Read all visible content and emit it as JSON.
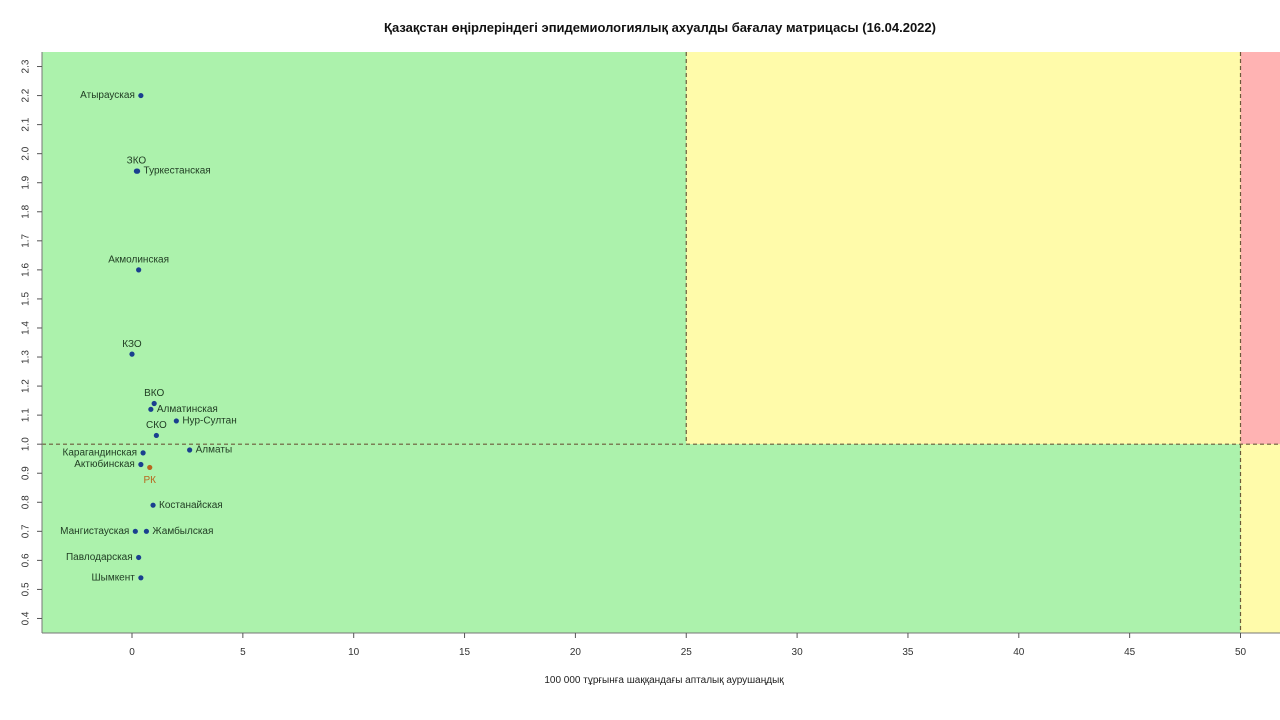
{
  "chart_data": {
    "type": "scatter",
    "title": "Қазақстан өңірлеріндегі эпидемиологиялық ахуалды бағалау матрицасы  (16.04.2022)",
    "xlabel": "100 000 тұрғынға шаққандағы апталық аурушаңдық",
    "ylabel": "",
    "xlim": [
      -4,
      52
    ],
    "ylim": [
      0.35,
      2.35
    ],
    "x_ticks": [
      0,
      5,
      10,
      15,
      20,
      25,
      30,
      35,
      40,
      45,
      50
    ],
    "y_ticks": [
      0.4,
      0.5,
      0.6,
      0.7,
      0.8,
      0.9,
      1.0,
      1.1,
      1.2,
      1.3,
      1.4,
      1.5,
      1.6,
      1.7,
      1.8,
      1.9,
      2.0,
      2.1,
      2.2,
      2.3
    ],
    "thresholds": {
      "x": [
        25,
        50
      ],
      "y": 1.0
    },
    "zone_colors": {
      "green": "#acf2ac",
      "yellow": "#fffbaa",
      "red": "#ffb3b3"
    },
    "point_color": "#1a3f8f",
    "highlight_color": "#b8661e",
    "points": [
      {
        "label": "Атырауская",
        "x": 0.4,
        "y": 2.2,
        "label_side": "left"
      },
      {
        "label": "ЗКО",
        "x": 0.2,
        "y": 1.94,
        "label_side": "top"
      },
      {
        "label": "Туркестанская",
        "x": 0.25,
        "y": 1.94,
        "label_side": "right"
      },
      {
        "label": "Акмолинская",
        "x": 0.3,
        "y": 1.6,
        "label_side": "top"
      },
      {
        "label": "КЗО",
        "x": 0.0,
        "y": 1.31,
        "label_side": "top"
      },
      {
        "label": "ВКО",
        "x": 1.0,
        "y": 1.14,
        "label_side": "top"
      },
      {
        "label": "Алматинская",
        "x": 0.85,
        "y": 1.12,
        "label_side": "right"
      },
      {
        "label": "Нур-Султан",
        "x": 2.0,
        "y": 1.08,
        "label_side": "right"
      },
      {
        "label": "СКО",
        "x": 1.1,
        "y": 1.03,
        "label_side": "top"
      },
      {
        "label": "Алматы",
        "x": 2.6,
        "y": 0.98,
        "label_side": "right"
      },
      {
        "label": "Карагандинская",
        "x": 0.5,
        "y": 0.97,
        "label_side": "left"
      },
      {
        "label": "Актюбинская",
        "x": 0.4,
        "y": 0.93,
        "label_side": "left"
      },
      {
        "label": "РК",
        "x": 0.8,
        "y": 0.92,
        "label_side": "bottom",
        "highlight": true
      },
      {
        "label": "Костанайская",
        "x": 0.95,
        "y": 0.79,
        "label_side": "right"
      },
      {
        "label": "Мангистауская",
        "x": 0.15,
        "y": 0.7,
        "label_side": "left"
      },
      {
        "label": "Жамбылская",
        "x": 0.65,
        "y": 0.7,
        "label_side": "right"
      },
      {
        "label": "Павлодарская",
        "x": 0.3,
        "y": 0.61,
        "label_side": "left"
      },
      {
        "label": "Шымкент",
        "x": 0.4,
        "y": 0.54,
        "label_side": "left"
      }
    ]
  }
}
